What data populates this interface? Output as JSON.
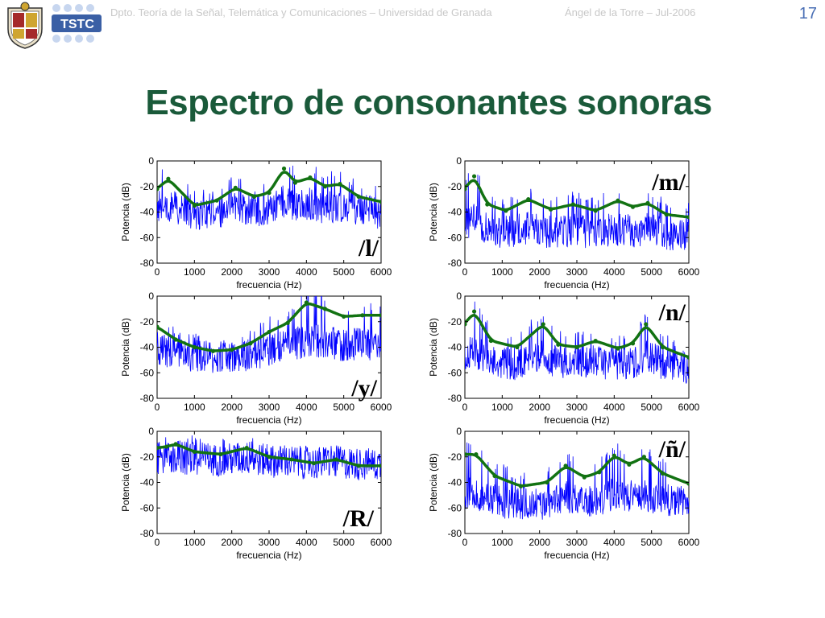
{
  "header": {
    "department": "Dpto. Teoría de la Señal, Telemática y Comunicaciones – Universidad de Granada",
    "author": "Ángel de la Torre – Jul-2006",
    "page_number": "17",
    "logo_text": "TSTC"
  },
  "title": "Espectro de consonantes sonoras",
  "chart_data": [
    {
      "type": "line",
      "phoneme_label": "/l/",
      "xlabel": "frecuencia (Hz)",
      "ylabel": "Potencia (dB)",
      "xlim": [
        0,
        6000
      ],
      "ylim": [
        -80,
        0
      ],
      "xticks": [
        0,
        1000,
        2000,
        3000,
        4000,
        5000,
        6000
      ],
      "yticks": [
        0,
        -20,
        -40,
        -60,
        -80
      ],
      "series": [
        {
          "color": "#0000ff",
          "noise_level": -45
        },
        {
          "color": "#127212",
          "x": [
            0,
            300,
            1000,
            1600,
            2100,
            2600,
            3000,
            3400,
            3700,
            4100,
            4500,
            4900,
            5400,
            6000
          ],
          "values": [
            -22,
            -14,
            -35,
            -31,
            -21,
            -28,
            -25,
            -6,
            -17,
            -13,
            -20,
            -18,
            -28,
            -32
          ]
        }
      ]
    },
    {
      "type": "line",
      "phoneme_label": "/m/",
      "xlabel": "frecuencia (Hz)",
      "ylabel": "Potencia (dB)",
      "xlim": [
        0,
        6000
      ],
      "ylim": [
        -80,
        0
      ],
      "xticks": [
        0,
        1000,
        2000,
        3000,
        4000,
        5000,
        6000
      ],
      "yticks": [
        0,
        -20,
        -40,
        -60,
        -80
      ],
      "series": [
        {
          "color": "#0000ff",
          "noise_level": -65
        },
        {
          "color": "#127212",
          "x": [
            0,
            250,
            600,
            1100,
            1700,
            2300,
            2900,
            3500,
            4100,
            4500,
            4900,
            5400,
            6000
          ],
          "values": [
            -22,
            -12,
            -34,
            -39,
            -30,
            -38,
            -34,
            -39,
            -31,
            -36,
            -33,
            -42,
            -44
          ]
        }
      ]
    },
    {
      "type": "line",
      "phoneme_label": "/y/",
      "xlabel": "frecuencia (Hz)",
      "ylabel": "Potencia (dB)",
      "xlim": [
        0,
        6000
      ],
      "ylim": [
        -80,
        0
      ],
      "xticks": [
        0,
        1000,
        2000,
        3000,
        4000,
        5000,
        6000
      ],
      "yticks": [
        0,
        -20,
        -40,
        -60,
        -80
      ],
      "series": [
        {
          "color": "#0000ff",
          "noise_level": -50
        },
        {
          "color": "#127212",
          "x": [
            0,
            500,
            1000,
            1500,
            2000,
            2500,
            3000,
            3500,
            4000,
            4500,
            5000,
            5500,
            6000
          ],
          "values": [
            -24,
            -34,
            -40,
            -43,
            -42,
            -37,
            -28,
            -21,
            -5,
            -10,
            -16,
            -15,
            -15
          ]
        }
      ]
    },
    {
      "type": "line",
      "phoneme_label": "/n/",
      "xlabel": "frecuencia (Hz)",
      "ylabel": "Potencia (dB)",
      "xlim": [
        0,
        6000
      ],
      "ylim": [
        -80,
        0
      ],
      "xticks": [
        0,
        1000,
        2000,
        3000,
        4000,
        5000,
        6000
      ],
      "yticks": [
        0,
        -20,
        -40,
        -60,
        -80
      ],
      "series": [
        {
          "color": "#0000ff",
          "noise_level": -60
        },
        {
          "color": "#127212",
          "x": [
            0,
            250,
            700,
            1400,
            2100,
            2500,
            3000,
            3500,
            4100,
            4500,
            4850,
            5300,
            6000
          ],
          "values": [
            -22,
            -12,
            -35,
            -40,
            -22,
            -38,
            -40,
            -35,
            -41,
            -37,
            -22,
            -40,
            -48
          ]
        }
      ]
    },
    {
      "type": "line",
      "phoneme_label": "/R/",
      "xlabel": "frecuencia (Hz)",
      "ylabel": "Potencia (dB)",
      "xlim": [
        0,
        6000
      ],
      "ylim": [
        -80,
        0
      ],
      "xticks": [
        0,
        1000,
        2000,
        3000,
        4000,
        5000,
        6000
      ],
      "yticks": [
        0,
        -20,
        -40,
        -60,
        -80
      ],
      "series": [
        {
          "color": "#0000ff",
          "noise_level": -25
        },
        {
          "color": "#127212",
          "x": [
            0,
            250,
            500,
            1000,
            1700,
            2400,
            3000,
            3600,
            4200,
            4800,
            5400,
            6000
          ],
          "values": [
            -13,
            -12,
            -10,
            -16,
            -18,
            -13,
            -20,
            -22,
            -25,
            -22,
            -27,
            -27
          ]
        }
      ]
    },
    {
      "type": "line",
      "phoneme_label": "/ñ/",
      "xlabel": "frecuencia (Hz)",
      "ylabel": "Potencia (dB)",
      "xlim": [
        0,
        6000
      ],
      "ylim": [
        -80,
        0
      ],
      "xticks": [
        0,
        1000,
        2000,
        3000,
        4000,
        5000,
        6000
      ],
      "yticks": [
        0,
        -20,
        -40,
        -60,
        -80
      ],
      "series": [
        {
          "color": "#0000ff",
          "noise_level": -65
        },
        {
          "color": "#127212",
          "x": [
            0,
            300,
            800,
            1500,
            2200,
            2700,
            3200,
            3600,
            4000,
            4400,
            4800,
            5300,
            6000
          ],
          "values": [
            -18,
            -18,
            -35,
            -43,
            -40,
            -27,
            -36,
            -32,
            -19,
            -26,
            -20,
            -33,
            -41
          ]
        }
      ]
    }
  ]
}
